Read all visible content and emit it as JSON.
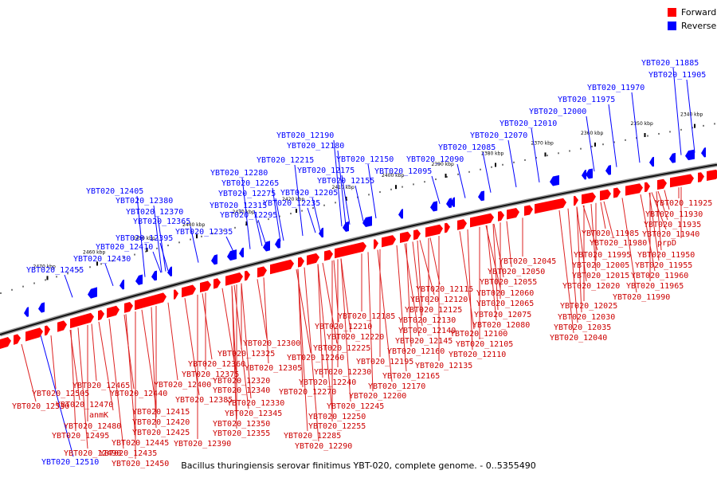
{
  "legend": {
    "forward_label": "Forward",
    "reverse_label": "Reverse",
    "forward_color": "#ff0000",
    "reverse_color": "#0000ff"
  },
  "caption": "Bacillus thuringiensis serovar finitimus YBT-020, complete genome. - 0..5355490",
  "kbp_ticks": [
    "2340 kbp",
    "2350 kbp",
    "2360 kbp",
    "2370 kbp",
    "2380 kbp",
    "2390 kbp",
    "2400 kbp",
    "2410 kbp",
    "2420 kbp",
    "2430 kbp",
    "2440 kbp",
    "2450 kbp",
    "2460 kbp",
    "2470 kbp"
  ],
  "reverse_labels": [
    "YBT020_11885",
    "YBT020_11905",
    "YBT020_11970",
    "YBT020_11975",
    "YBT020_12000",
    "YBT020_12010",
    "YBT020_12070",
    "YBT020_12085",
    "YBT020_12090",
    "YBT020_12095",
    "YBT020_12150",
    "YBT020_12155",
    "YBT020_12175",
    "YBT020_12180",
    "YBT020_12190",
    "YBT020_12205",
    "YBT020_12215",
    "YBT020_12235",
    "YBT020_12265",
    "YBT020_12275",
    "YBT020_12280",
    "YBT020_12295",
    "YBT020_12315",
    "YBT020_12335",
    "YBT020_12365",
    "YBT020_12370",
    "YBT020_12380",
    "YBT020_12395",
    "YBT020_12405",
    "YBT020_12410",
    "YBT020_12430",
    "YBT020_12455",
    "YBT020_12510"
  ],
  "forward_labels": [
    "YBT020_11925",
    "YBT020_11930",
    "YBT020_11935",
    "YBT020_11940",
    "prpD",
    "YBT020_11950",
    "YBT020_11955",
    "YBT020_11960",
    "YBT020_11965",
    "YBT020_11985",
    "YBT020_11980",
    "YBT020_11995",
    "YBT020_12005",
    "YBT020_12015",
    "YBT020_12020",
    "YBT020_11990",
    "YBT020_12025",
    "YBT020_12030",
    "YBT020_12035",
    "YBT020_12040",
    "YBT020_12045",
    "YBT020_12050",
    "YBT020_12055",
    "YBT020_12060",
    "YBT020_12065",
    "YBT020_12075",
    "YBT020_12080",
    "YBT020_12100",
    "YBT020_12105",
    "YBT020_12110",
    "YBT020_12115",
    "YBT020_12120",
    "YBT020_12125",
    "YBT020_12130",
    "YBT020_12140",
    "YBT020_12145",
    "YBT020_12135",
    "YBT020_12160",
    "YBT020_12165",
    "YBT020_12170",
    "YBT020_12185",
    "YBT020_12210",
    "YBT020_12220",
    "YBT020_12225",
    "YBT020_12195",
    "YBT020_12200",
    "YBT020_12300",
    "YBT020_12260",
    "YBT020_12230",
    "YBT020_12240",
    "YBT020_12245",
    "YBT020_12250",
    "YBT020_12255",
    "YBT020_12270",
    "YBT020_12285",
    "YBT020_12290",
    "YBT020_12325",
    "YBT020_12305",
    "YBT020_12360",
    "YBT020_12320",
    "YBT020_12375",
    "YBT020_12340",
    "YBT020_12330",
    "YBT020_12345",
    "YBT020_12350",
    "YBT020_12355",
    "YBT020_12400",
    "YBT020_12385",
    "YBT020_12390",
    "YBT020_12465",
    "YBT020_12440",
    "YBT020_12415",
    "YBT020_12420",
    "YBT020_12425",
    "YBT020_12445",
    "YBT020_12435",
    "YBT020_12450",
    "YBT020_12505",
    "YBT020_12470",
    "anmK",
    "YBT020_12480",
    "YBT020_12495",
    "YBT020_12490",
    "YBT020_12530"
  ]
}
